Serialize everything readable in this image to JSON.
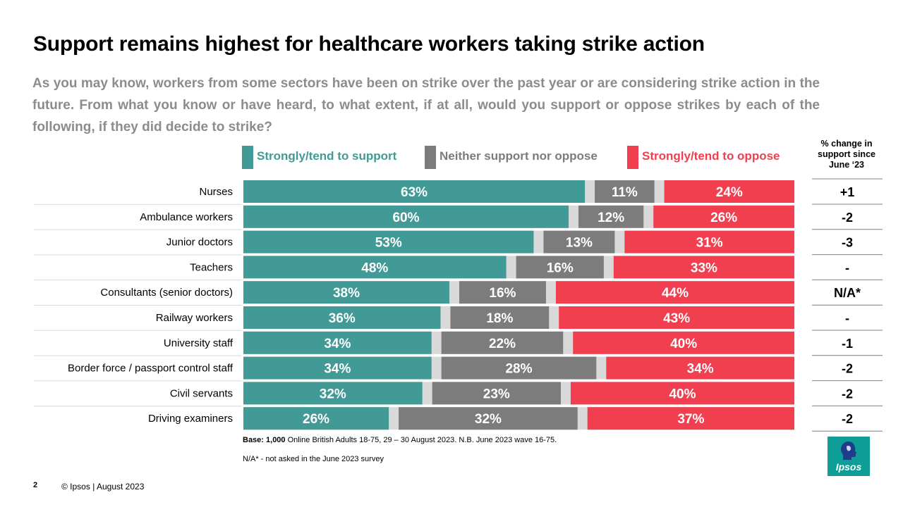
{
  "title": "Support remains highest for healthcare workers taking strike action",
  "question": "As you may know, workers from some sectors have been on strike over the past year or are considering strike action in the future.  From what you know or have heard, to what extent, if at all, would you support or oppose strikes by each of the following,  if they did decide to strike?",
  "change_header": "% change in support since June ‘23",
  "colors": {
    "support": "#429a96",
    "neither": "#7c7c7c",
    "oppose": "#f13f4f",
    "dontknow": "#d9d9d9"
  },
  "footnote_base_bold": "Base: 1,000",
  "footnote_base_rest": " Online British Adults 18-75, 29 – 30 August 2023. N.B. June 2023 wave 16-75.",
  "footnote_na": "N/A* - not asked in the June 2023 survey",
  "page_number": "2",
  "copyright": "© Ipsos | August 2023",
  "logo_text": "Ipsos",
  "chart_data": {
    "type": "bar",
    "orientation": "horizontal",
    "stacked": true,
    "categories": [
      "Nurses",
      "Ambulance workers",
      "Junior doctors",
      "Teachers",
      "Consultants (senior doctors)",
      "Railway workers",
      "University staff",
      "Border force / passport control staff",
      "Civil servants",
      "Driving examiners"
    ],
    "series": [
      {
        "name": "Strongly/tend to support",
        "values": [
          63,
          60,
          53,
          48,
          38,
          36,
          34,
          34,
          32,
          26
        ],
        "color": "#429a96"
      },
      {
        "name": "Neither support nor oppose",
        "values": [
          11,
          12,
          13,
          16,
          16,
          18,
          22,
          28,
          23,
          32
        ],
        "color": "#7c7c7c"
      },
      {
        "name": "Strongly/tend to oppose",
        "values": [
          24,
          26,
          31,
          33,
          44,
          43,
          40,
          34,
          40,
          37
        ],
        "color": "#f13f4f"
      }
    ],
    "segment_order": [
      "support",
      "dontknow",
      "neither",
      "dontknow",
      "oppose"
    ],
    "value_suffix": "%",
    "change_since_june_23": [
      "+1",
      "-2",
      "-3",
      "-",
      "N/A*",
      "-",
      "-1",
      "-2",
      "-2",
      "-2"
    ],
    "xlim": [
      0,
      100
    ],
    "legend_position": "top"
  }
}
